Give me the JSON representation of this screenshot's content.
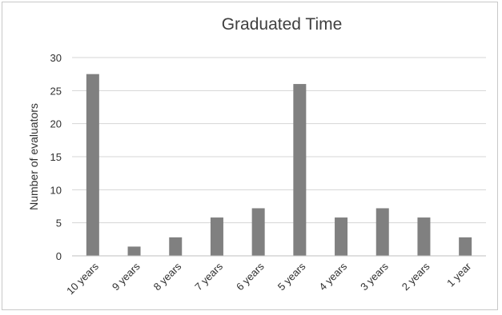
{
  "chart_data": {
    "type": "bar",
    "title": "Graduated Time",
    "xlabel": "",
    "ylabel": "Number of evaluators",
    "categories": [
      "10 years",
      "9 years",
      "8 years",
      "7 years",
      "6 years",
      "5 years",
      "4 years",
      "3 years",
      "2 years",
      "1 year"
    ],
    "values": [
      27.5,
      1.4,
      2.8,
      5.8,
      7.2,
      26,
      5.8,
      7.2,
      5.8,
      2.8
    ],
    "ylim": [
      0,
      30
    ],
    "yticks": [
      "0",
      "5",
      "10",
      "15",
      "20",
      "25",
      "30"
    ],
    "grid": true,
    "legend": "none",
    "bar_color": "#808080"
  }
}
